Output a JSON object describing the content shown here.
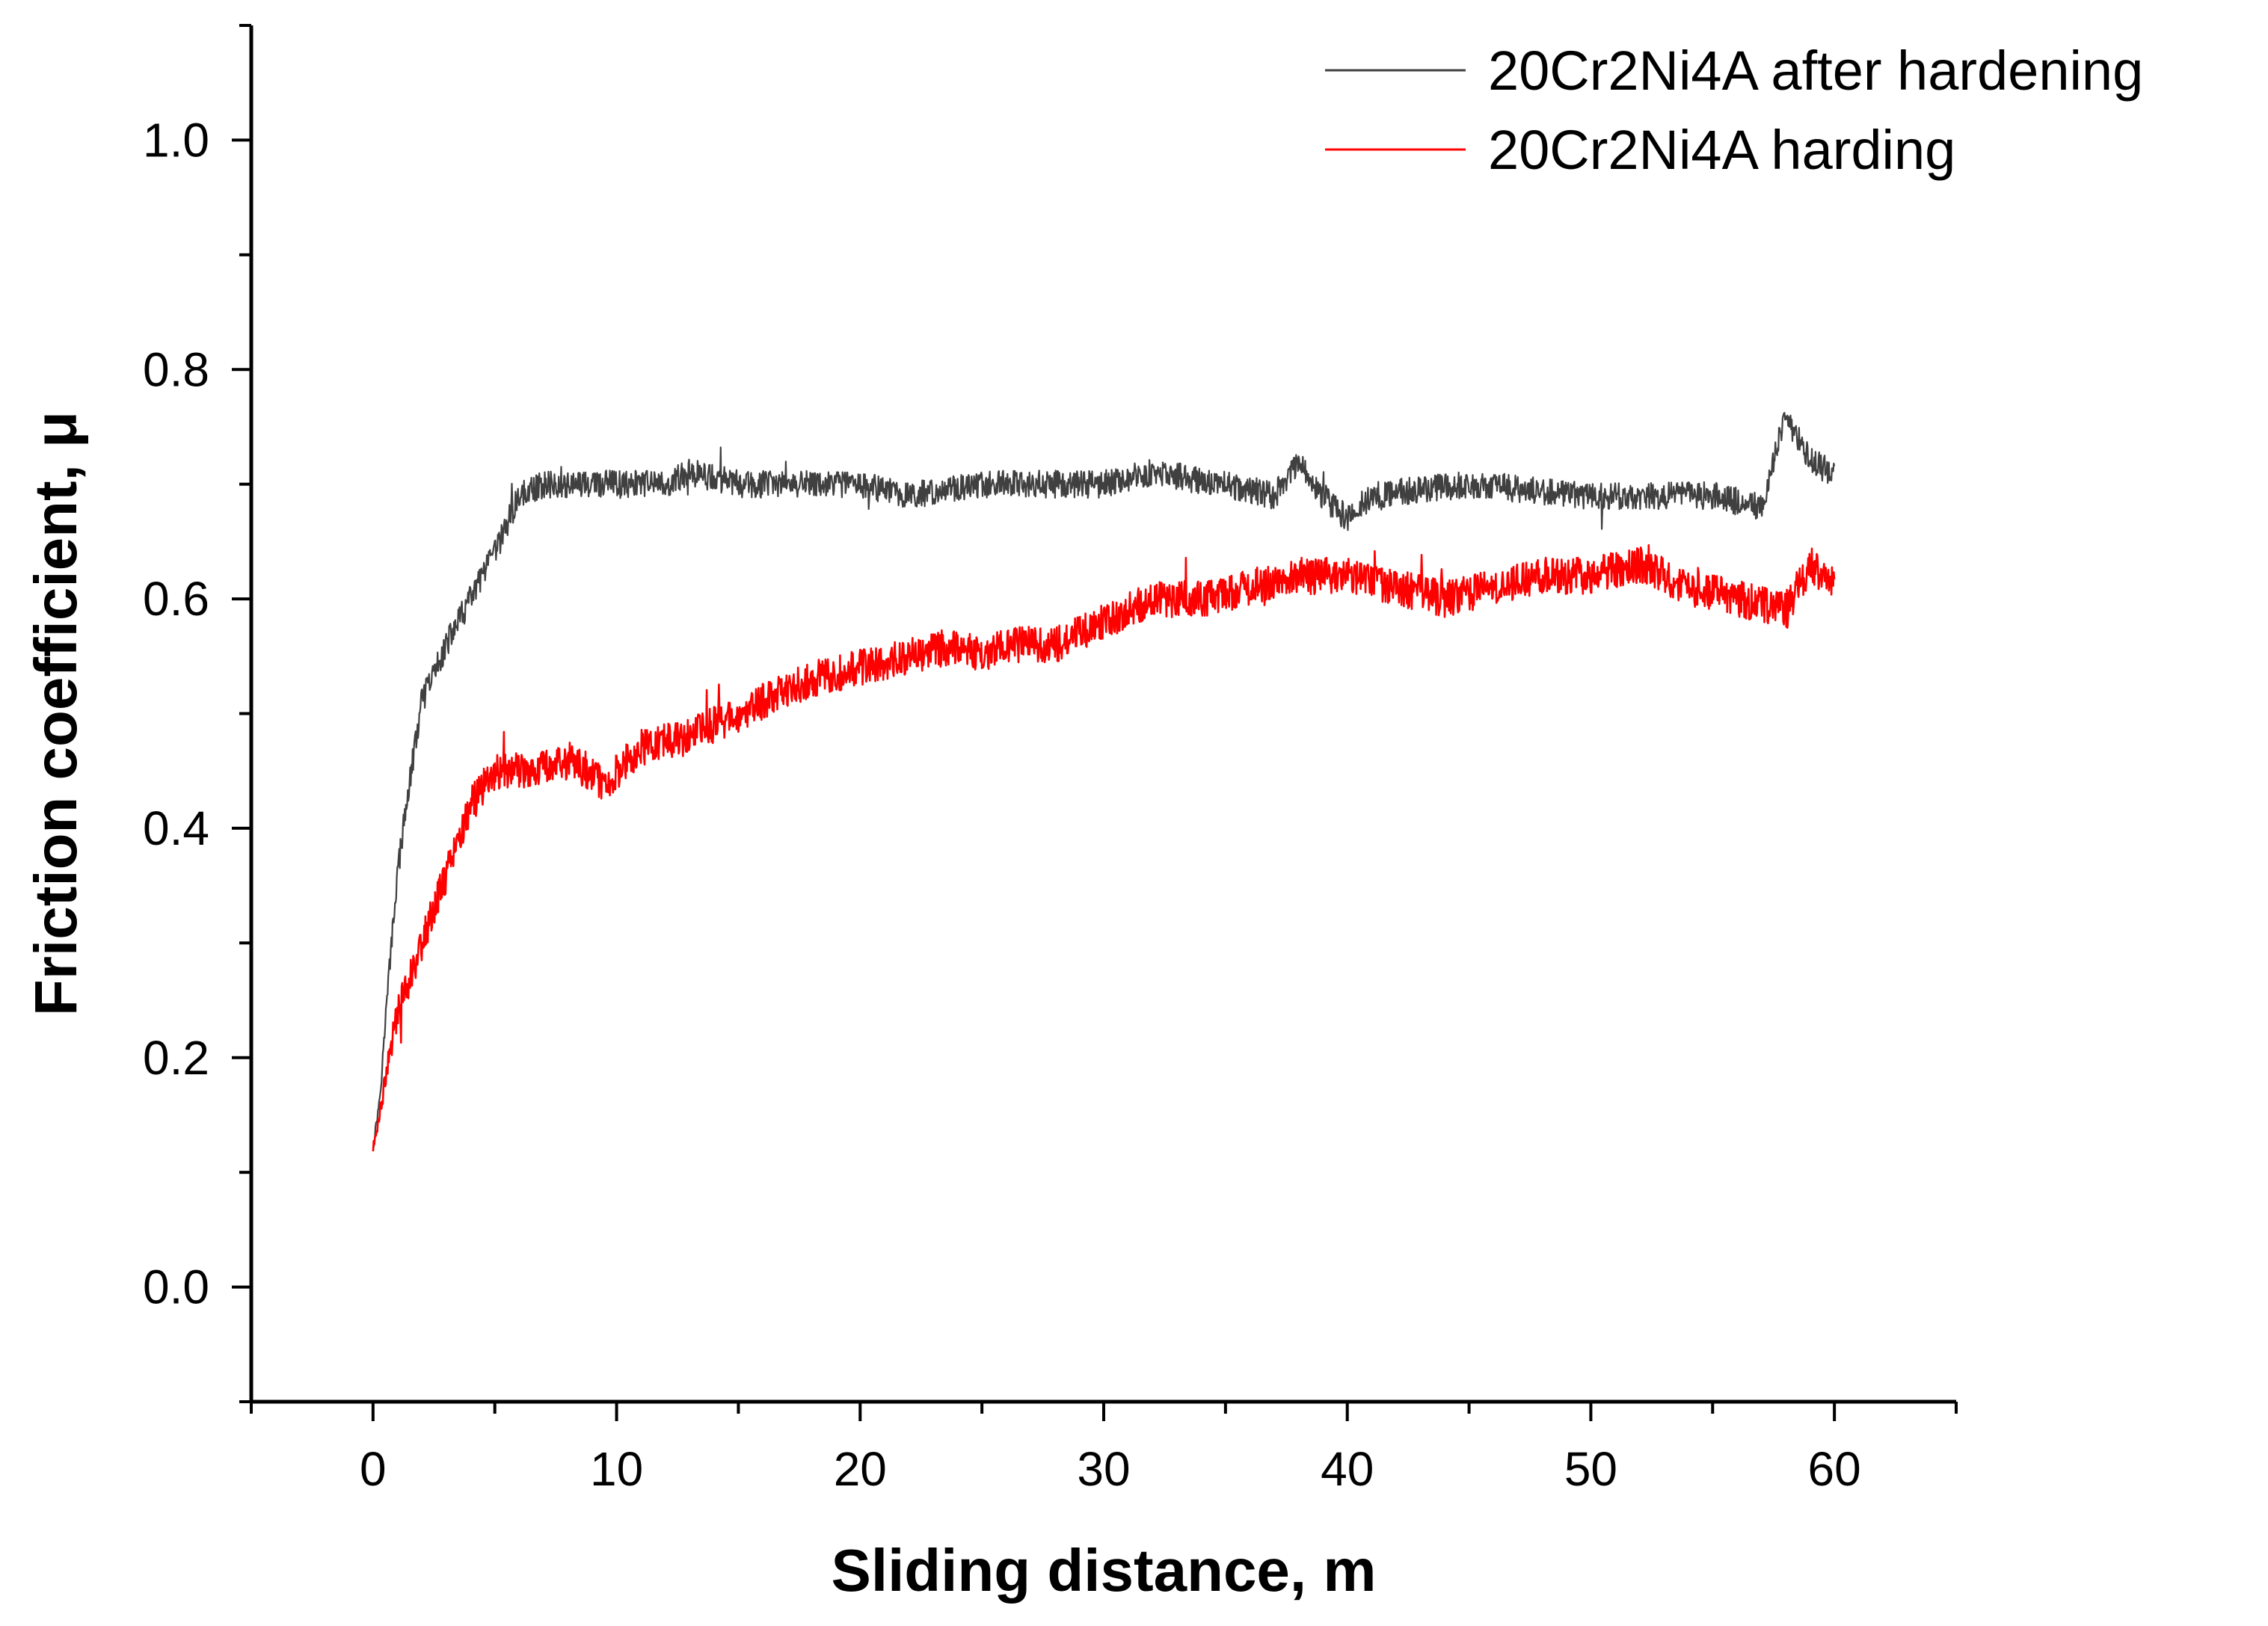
{
  "chart_data": {
    "type": "line",
    "title": "",
    "xlabel": "Sliding distance, m",
    "ylabel": "Friction coefficient, μ",
    "xlim": [
      -5,
      65
    ],
    "ylim": [
      -0.1,
      1.1
    ],
    "x_ticks": [
      0,
      10,
      20,
      30,
      40,
      50,
      60
    ],
    "y_ticks": [
      0.0,
      0.2,
      0.4,
      0.6,
      0.8,
      1.0
    ],
    "x_tick_labels": [
      "0",
      "10",
      "20",
      "30",
      "40",
      "50",
      "60"
    ],
    "y_tick_labels": [
      "0.0",
      "0.2",
      "0.4",
      "0.6",
      "0.8",
      "1.0"
    ],
    "grid": false,
    "legend_position": "top-right",
    "series": [
      {
        "name": "20Cr2Ni4A after hardening",
        "color": "#404040",
        "noise": 0.012,
        "x": [
          0,
          0.3,
          0.6,
          1.0,
          1.5,
          2.0,
          3.0,
          4.0,
          5.0,
          6.0,
          7.0,
          8.0,
          10.0,
          12.0,
          13.0,
          15.0,
          18.0,
          20.0,
          22.0,
          25.0,
          28.0,
          30.0,
          32.0,
          35.0,
          37.0,
          38.0,
          39.0,
          40.0,
          41.0,
          45.0,
          50.0,
          55.0,
          57.0,
          58.0,
          59.0,
          60.0
        ],
        "y": [
          0.12,
          0.17,
          0.26,
          0.36,
          0.44,
          0.51,
          0.56,
          0.6,
          0.64,
          0.69,
          0.7,
          0.7,
          0.7,
          0.7,
          0.71,
          0.7,
          0.7,
          0.7,
          0.69,
          0.7,
          0.7,
          0.7,
          0.71,
          0.7,
          0.69,
          0.72,
          0.69,
          0.67,
          0.69,
          0.7,
          0.69,
          0.69,
          0.68,
          0.76,
          0.72,
          0.71
        ]
      },
      {
        "name": "20Cr2Ni4A harding",
        "color": "#ff0000",
        "noise": 0.016,
        "x": [
          0,
          0.5,
          1.0,
          2.0,
          3.0,
          4.0,
          5.0,
          6.0,
          8.0,
          9.5,
          11.0,
          13.0,
          15.0,
          18.0,
          20.0,
          22.0,
          24.0,
          25.0,
          26.0,
          28.0,
          30.0,
          32.0,
          34.0,
          36.0,
          38.0,
          40.0,
          42.0,
          44.0,
          46.0,
          48.0,
          50.0,
          52.0,
          54.0,
          56.0,
          58.0,
          59.0,
          60.0
        ],
        "y": [
          0.12,
          0.18,
          0.24,
          0.3,
          0.36,
          0.42,
          0.45,
          0.45,
          0.46,
          0.44,
          0.47,
          0.48,
          0.5,
          0.53,
          0.54,
          0.55,
          0.56,
          0.55,
          0.56,
          0.56,
          0.58,
          0.6,
          0.6,
          0.61,
          0.62,
          0.62,
          0.61,
          0.6,
          0.61,
          0.62,
          0.62,
          0.63,
          0.61,
          0.6,
          0.59,
          0.63,
          0.61
        ]
      }
    ]
  }
}
